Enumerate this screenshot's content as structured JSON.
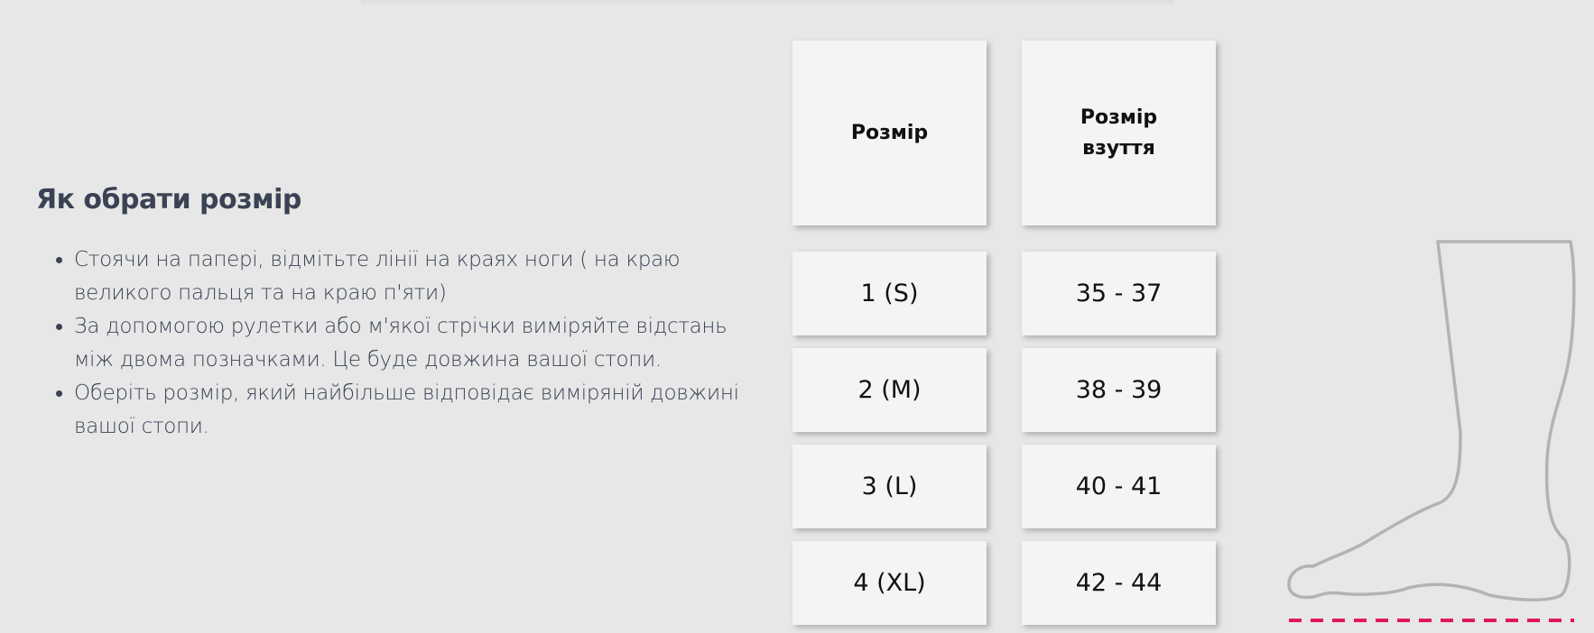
{
  "section": {
    "title": "Як обрати розмір",
    "steps": [
      "Стоячи на папері, відмітьте лінії на краях ноги ( на краю великого пальця та на краю п'яти)",
      "За допомогою рулетки або м'якої стрічки виміряйте відстань між двома позначками. Це буде довжина вашої стопи.",
      "Оберіть розмір, який найбільше відповідає виміряній довжині вашої стопи."
    ]
  },
  "table": {
    "headers": [
      "Розмір",
      "Розмір взуття"
    ],
    "rows": [
      [
        "1 (S)",
        "35 - 37"
      ],
      [
        "2 (M)",
        "38 - 39"
      ],
      [
        "3 (L)",
        "40 - 41"
      ],
      [
        "4 (XL)",
        "42 - 44"
      ]
    ]
  },
  "colors": {
    "background": "#e7e7e7",
    "heading": "#3a4254",
    "outline": "#b3b3b3",
    "measure_line": "#e0185a"
  }
}
